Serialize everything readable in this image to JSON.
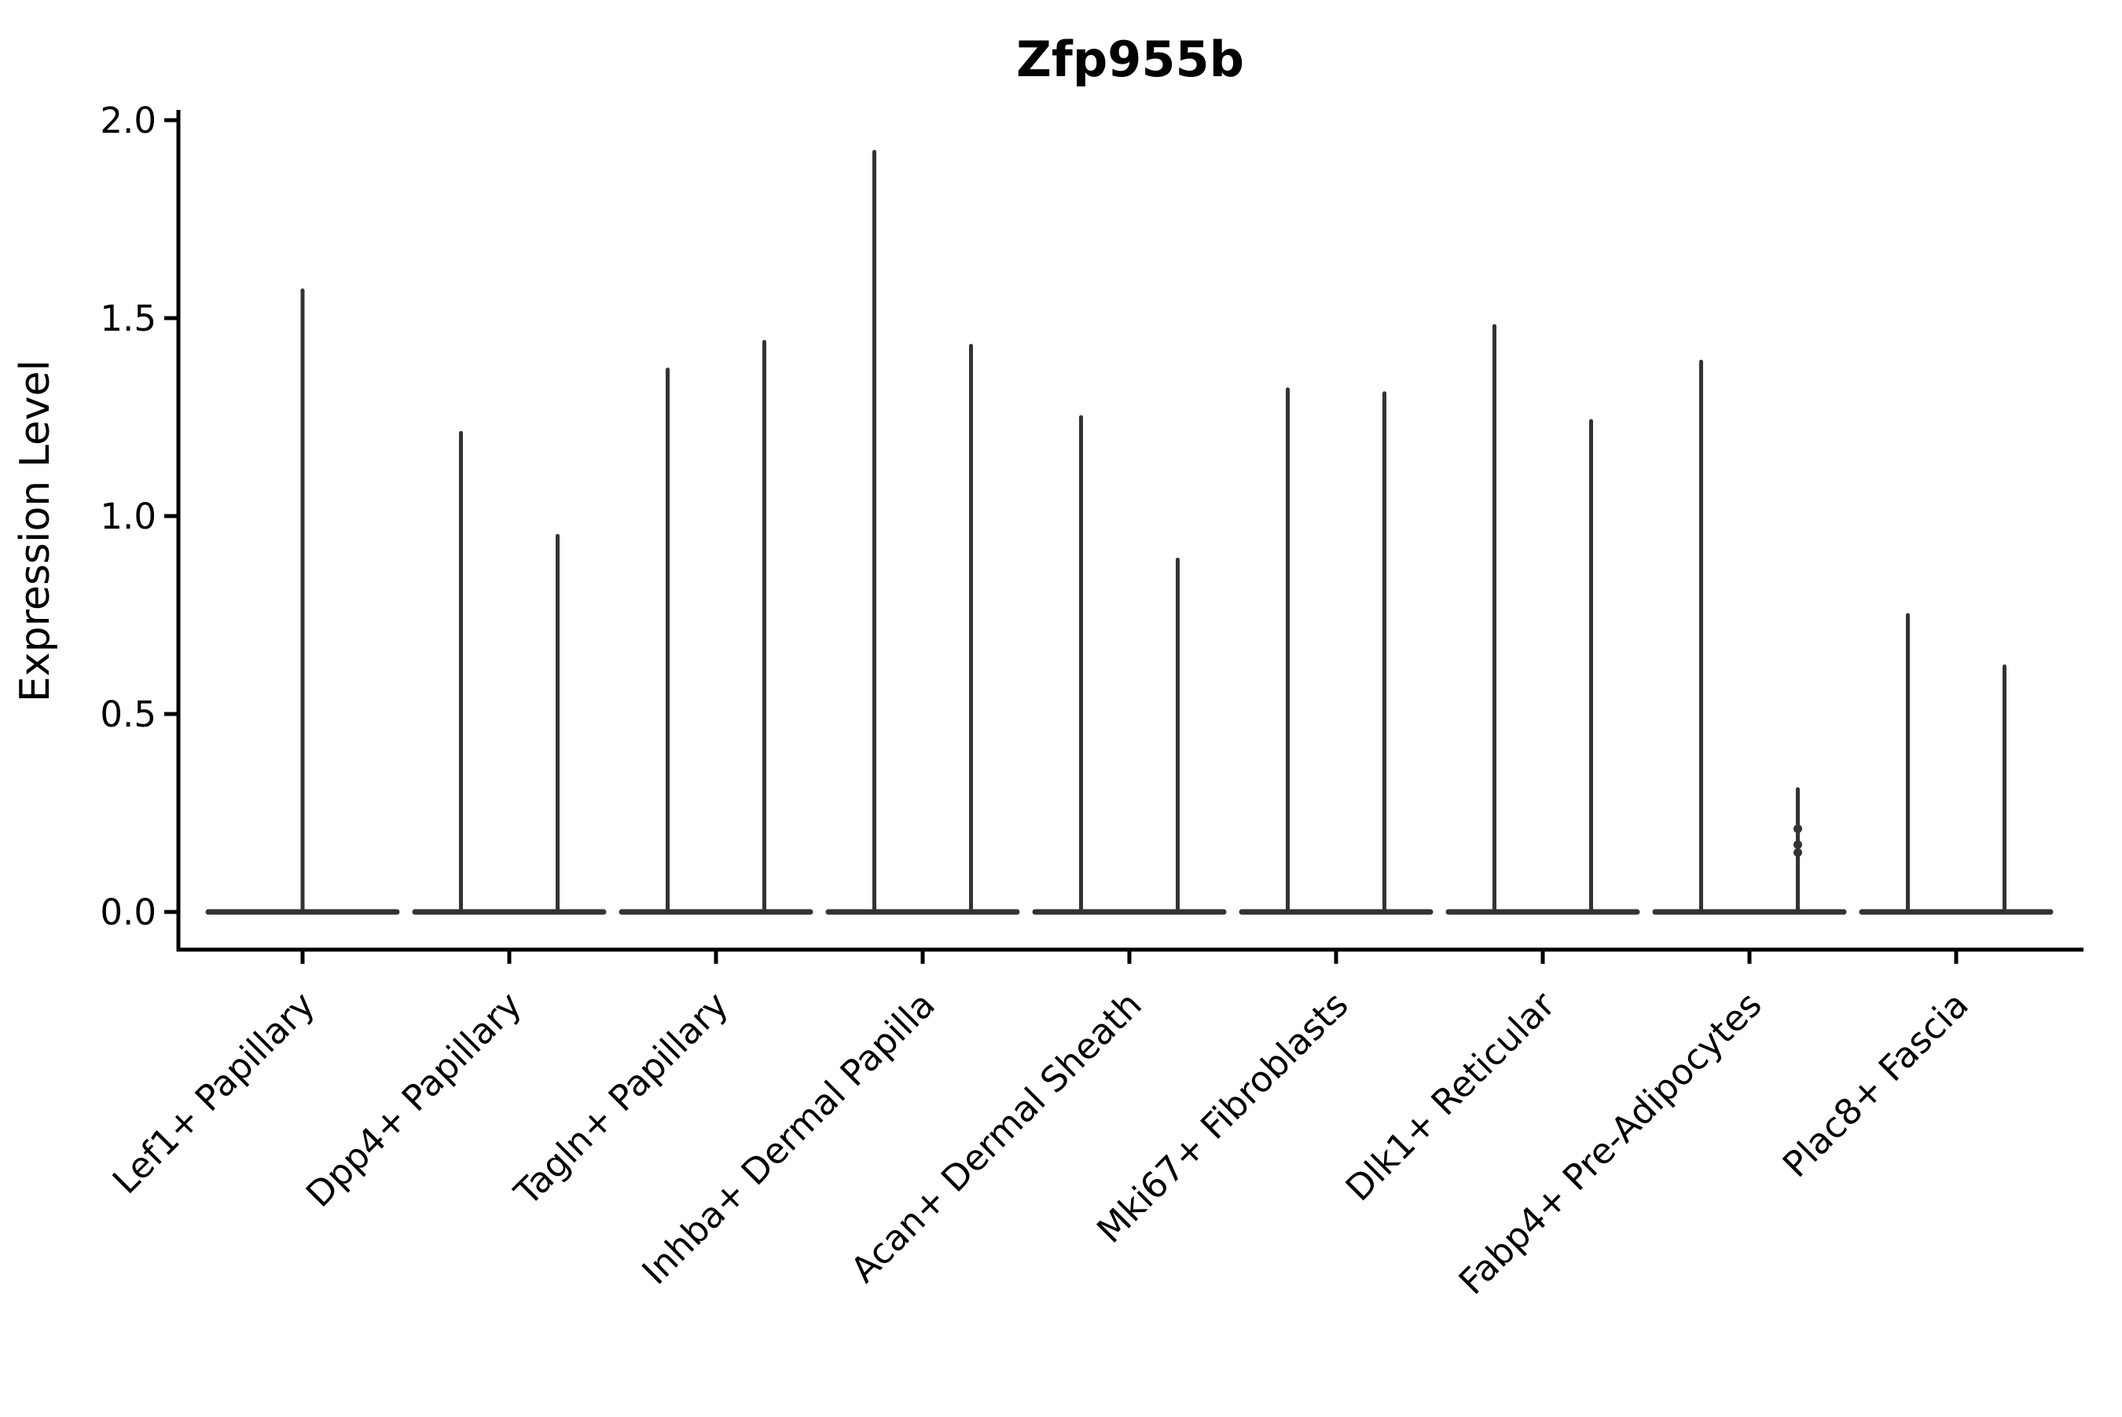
{
  "chart_data": {
    "type": "violin",
    "title": "Zfp955b",
    "xlabel": "",
    "ylabel": "Expression Level",
    "ylim": [
      0.0,
      2.07
    ],
    "yticks": [
      0.0,
      0.5,
      1.0,
      1.5,
      2.0
    ],
    "ytick_labels": [
      "0.0",
      "0.5",
      "1.0",
      "1.5",
      "2.0"
    ],
    "grid": false,
    "legend": "none",
    "background_color": "#ffffff",
    "violin_color": "#333333",
    "axis_color": "#000000",
    "categories": [
      "Lef1+ Papillary",
      "Dpp4+ Papillary",
      "Tagln+ Papillary",
      "Inhba+ Dermal Papilla",
      "Acan+ Dermal Sheath",
      "Mki67+ Fibroblasts",
      "Dlk1+ Reticular",
      "Fabp4+ Pre-Adipocytes",
      "Plac8+ Fascia"
    ],
    "violins": [
      {
        "category": "Lef1+ Papillary",
        "spikes": [
          {
            "position": "center",
            "max": 1.57
          }
        ]
      },
      {
        "category": "Dpp4+ Papillary",
        "spikes": [
          {
            "position": "left",
            "max": 1.21
          },
          {
            "position": "right",
            "max": 0.95
          }
        ]
      },
      {
        "category": "Tagln+ Papillary",
        "spikes": [
          {
            "position": "left",
            "max": 1.37
          },
          {
            "position": "right",
            "max": 1.44
          }
        ]
      },
      {
        "category": "Inhba+ Dermal Papilla",
        "spikes": [
          {
            "position": "left",
            "max": 1.92
          },
          {
            "position": "right",
            "max": 1.43
          }
        ]
      },
      {
        "category": "Acan+ Dermal Sheath",
        "spikes": [
          {
            "position": "left",
            "max": 1.25
          },
          {
            "position": "right",
            "max": 0.89
          }
        ]
      },
      {
        "category": "Mki67+ Fibroblasts",
        "spikes": [
          {
            "position": "left",
            "max": 1.32
          },
          {
            "position": "right",
            "max": 1.31
          }
        ]
      },
      {
        "category": "Dlk1+ Reticular",
        "spikes": [
          {
            "position": "left",
            "max": 1.48
          },
          {
            "position": "right",
            "max": 1.24
          }
        ]
      },
      {
        "category": "Fabp4+ Pre-Adipocytes",
        "spikes": [
          {
            "position": "left",
            "max": 1.39
          },
          {
            "position": "right",
            "max": 0.31,
            "dots": [
              0.21,
              0.17,
              0.15
            ]
          }
        ]
      },
      {
        "category": "Plac8+ Fascia",
        "spikes": [
          {
            "position": "left",
            "max": 0.75
          },
          {
            "position": "right",
            "max": 0.62
          }
        ]
      }
    ]
  }
}
